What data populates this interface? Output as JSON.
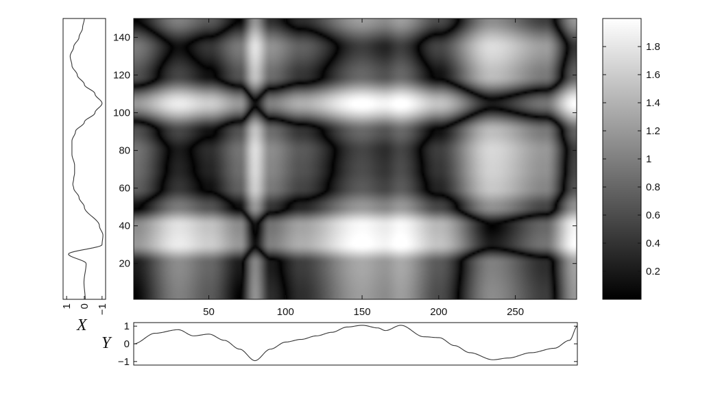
{
  "chart_data": [
    {
      "type": "heatmap",
      "title": "",
      "xlabel": "",
      "ylabel": "",
      "xlim": [
        1,
        290
      ],
      "ylim": [
        1,
        150
      ],
      "x_ticks": [
        50,
        100,
        150,
        200,
        250
      ],
      "y_ticks": [
        20,
        40,
        60,
        80,
        100,
        120,
        140
      ],
      "colormap": "gray",
      "color_range": [
        0,
        2
      ],
      "colorbar_ticks": [
        0.2,
        0.4,
        0.6,
        0.8,
        1,
        1.2,
        1.4,
        1.6,
        1.8
      ],
      "grid": false,
      "field_shape": "|X(y) - Y(x)|",
      "x_signal": {
        "x": [
          1,
          30,
          50,
          70,
          80,
          90,
          110,
          150,
          165,
          175,
          200,
          235,
          270,
          290
        ],
        "values": [
          0.0,
          0.8,
          0.5,
          0.0,
          -0.95,
          -0.2,
          0.2,
          1.05,
          0.9,
          1.05,
          0.4,
          -0.9,
          -0.3,
          1.0
        ]
      },
      "y_signal": {
        "y": [
          1,
          20,
          30,
          40,
          50,
          60,
          70,
          80,
          90,
          105,
          120,
          135,
          150
        ],
        "values": [
          0.0,
          -0.1,
          -1.0,
          -0.9,
          0.05,
          0.55,
          0.65,
          0.7,
          0.45,
          -1.0,
          0.45,
          0.75,
          0.0
        ]
      }
    },
    {
      "type": "line",
      "name": "X",
      "label": "X",
      "orientation": "vertical",
      "ylim": [
        1,
        150
      ],
      "xlim": [
        -1.2,
        1.2
      ],
      "axis_reversed": true,
      "ticks": [
        1,
        0,
        -1
      ],
      "tick_labels": [
        "1",
        "0",
        "−1"
      ],
      "y": [
        1,
        10,
        20,
        25,
        30,
        35,
        40,
        50,
        55,
        60,
        62,
        65,
        68,
        72,
        78,
        85,
        90,
        95,
        100,
        105,
        110,
        115,
        120,
        125,
        130,
        135,
        140,
        145,
        150
      ],
      "values": [
        -0.05,
        0.02,
        -0.1,
        0.9,
        -1.0,
        -1.05,
        -0.85,
        0.0,
        0.3,
        0.6,
        0.65,
        0.6,
        0.55,
        0.55,
        0.7,
        0.7,
        0.5,
        0.0,
        -0.6,
        -1.0,
        -0.6,
        0.0,
        0.4,
        0.7,
        0.8,
        0.6,
        0.3,
        0.1,
        0.0
      ]
    },
    {
      "type": "line",
      "name": "Y",
      "label": "Y",
      "xlim": [
        1,
        290
      ],
      "ylim": [
        -1.2,
        1.2
      ],
      "y_ticks": [
        1,
        0,
        -1
      ],
      "y_tick_labels": [
        "1",
        "0",
        "−1"
      ],
      "x": [
        1,
        15,
        30,
        40,
        50,
        60,
        70,
        80,
        90,
        100,
        110,
        120,
        130,
        140,
        150,
        160,
        165,
        175,
        190,
        200,
        210,
        220,
        235,
        245,
        260,
        275,
        285,
        290
      ],
      "values": [
        0.0,
        0.6,
        0.8,
        0.45,
        0.55,
        0.2,
        -0.3,
        -0.95,
        -0.3,
        0.1,
        0.25,
        0.45,
        0.65,
        0.95,
        1.05,
        0.9,
        0.75,
        1.05,
        0.4,
        0.35,
        -0.1,
        -0.5,
        -0.9,
        -0.8,
        -0.5,
        -0.25,
        0.2,
        1.0
      ]
    }
  ]
}
